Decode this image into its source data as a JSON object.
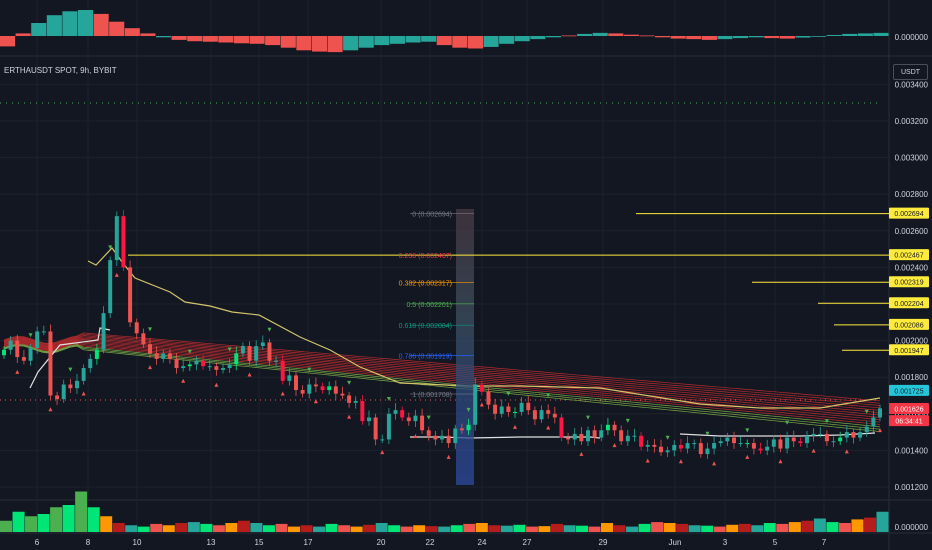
{
  "header": {
    "symbol": "ERTHAUSDT SPOT, 9h, BYBIT",
    "currency": "USDT"
  },
  "oscillator": {
    "zero_label": "0.000000"
  },
  "volume_pane": {
    "zero_label": "0.000000"
  },
  "price_axis": {
    "ticks": [
      "0.003400",
      "0.003200",
      "0.003000",
      "0.002800",
      "0.002600",
      "0.002400",
      "0.002200",
      "0.002000",
      "0.001800",
      "0.001600",
      "0.001400",
      "0.001200"
    ],
    "tick_values": [
      0.0034,
      0.0032,
      0.003,
      0.0028,
      0.0026,
      0.0024,
      0.0022,
      0.002,
      0.0018,
      0.0016,
      0.0014,
      0.0012
    ]
  },
  "time_axis": {
    "labels": [
      "6",
      "8",
      "10",
      "13",
      "15",
      "17",
      "20",
      "22",
      "24",
      "27",
      "29",
      "Jun",
      "3",
      "5",
      "7"
    ]
  },
  "fib_levels": [
    {
      "label": "0 (0.002694)",
      "value": 0.002694,
      "color": "#787b86"
    },
    {
      "label": "0.236 (0.002467)",
      "value": 0.002467,
      "color": "#f23645"
    },
    {
      "label": "0.382 (0.002317)",
      "value": 0.002317,
      "color": "#ff9800"
    },
    {
      "label": "0.5 (0.002201)",
      "value": 0.002201,
      "color": "#4caf50"
    },
    {
      "label": "0.618 (0.002084)",
      "value": 0.002084,
      "color": "#089981"
    },
    {
      "label": "0.786 (0.001919)",
      "value": 0.001919,
      "color": "#2962ff"
    },
    {
      "label": "1 (0.001708)",
      "value": 0.001708,
      "color": "#787b86"
    }
  ],
  "level_badges": [
    {
      "text": "0.002694",
      "value": 0.002694,
      "bg": "#ffeb3b",
      "fg": "#131722"
    },
    {
      "text": "0.002467",
      "value": 0.002467,
      "bg": "#ffeb3b",
      "fg": "#131722"
    },
    {
      "text": "0.002319",
      "value": 0.002319,
      "bg": "#ffeb3b",
      "fg": "#131722"
    },
    {
      "text": "0.002204",
      "value": 0.002204,
      "bg": "#ffeb3b",
      "fg": "#131722"
    },
    {
      "text": "0.002086",
      "value": 0.002086,
      "bg": "#ffeb3b",
      "fg": "#131722"
    },
    {
      "text": "0.001947",
      "value": 0.001947,
      "bg": "#ffeb3b",
      "fg": "#131722"
    },
    {
      "text": "0.001725",
      "value": 0.001725,
      "bg": "#26c6da",
      "fg": "#131722"
    },
    {
      "text": "0.001626",
      "value": 0.001626,
      "bg": "#f23645",
      "fg": "#ffffff"
    },
    {
      "text": "06:34:41",
      "value": 0.00156,
      "bg": "#f23645",
      "fg": "#ffffff"
    }
  ],
  "colors": {
    "up": "#26a69a",
    "down": "#ef5350",
    "bright_up": "#00e676",
    "bright_down": "#ff1744",
    "yellow": "#ffeb3b",
    "ribbon": "#d32f2f",
    "grid": "#1e222d"
  },
  "chart_data": [
    {
      "type": "candlestick",
      "title": "ERTHAUSDT SPOT, 9h, BYBIT",
      "ylim": [
        0.0011,
        0.00345
      ],
      "y_axis_labels": [
        "0.003400",
        "0.003200",
        "0.003000",
        "0.002800",
        "0.002600",
        "0.002400",
        "0.002200",
        "0.002000",
        "0.001800",
        "0.001600",
        "0.001400",
        "0.001200"
      ],
      "x_axis_labels": [
        "6",
        "8",
        "10",
        "13",
        "15",
        "17",
        "20",
        "22",
        "24",
        "27",
        "29",
        "Jun",
        "3",
        "5",
        "7"
      ],
      "series": [
        {
          "name": "ERTHAUSDT",
          "close": [
            0.00195,
            0.002,
            0.00191,
            0.00189,
            0.00196,
            0.00205,
            0.00205,
            0.0017,
            0.00168,
            0.00176,
            0.00174,
            0.00178,
            0.00185,
            0.0019,
            0.00195,
            0.00215,
            0.00244,
            0.00268,
            0.0024,
            0.0021,
            0.00204,
            0.00198,
            0.00193,
            0.0019,
            0.00193,
            0.0019,
            0.00185,
            0.00186,
            0.00187,
            0.00189,
            0.00186,
            0.00186,
            0.00184,
            0.00185,
            0.00187,
            0.00193,
            0.00197,
            0.00189,
            0.00197,
            0.00199,
            0.00189,
            0.00189,
            0.00178,
            0.00181,
            0.00173,
            0.00171,
            0.00176,
            0.00175,
            0.00173,
            0.00175,
            0.00171,
            0.0017,
            0.00166,
            0.00167,
            0.00156,
            0.00158,
            0.00146,
            0.00146,
            0.0016,
            0.00162,
            0.00158,
            0.00156,
            0.00159,
            0.00151,
            0.00148,
            0.00146,
            0.00148,
            0.00144,
            0.00152,
            0.00151,
            0.00154,
            0.00176,
            0.00172,
            0.00165,
            0.0016,
            0.00164,
            0.00161,
            0.00161,
            0.00166,
            0.00162,
            0.00157,
            0.00162,
            0.0016,
            0.00158,
            0.00147,
            0.00146,
            0.00149,
            0.00145,
            0.00151,
            0.00147,
            0.00151,
            0.00154,
            0.00151,
            0.00145,
            0.00148,
            0.00148,
            0.00142,
            0.00143,
            0.00142,
            0.00139,
            0.0014,
            0.00143,
            0.00141,
            0.00144,
            0.00144,
            0.00138,
            0.00141,
            0.00144,
            0.00145,
            0.00147,
            0.00144,
            0.00144,
            0.00144,
            0.00141,
            0.0014,
            0.00142,
            0.00146,
            0.00141,
            0.00147,
            0.00145,
            0.00144,
            0.00148,
            0.00149,
            0.00149,
            0.00145,
            0.00145,
            0.00147,
            0.0015,
            0.00147,
            0.0015,
            0.00153,
            0.00158,
            0.00163
          ]
        }
      ]
    },
    {
      "type": "bar",
      "title": "",
      "y_axis_labels": [
        "0.000000"
      ],
      "series": [
        {
          "name": "oscillator",
          "values": [
            -0.4,
            0.1,
            0.5,
            0.8,
            0.95,
            1.0,
            0.85,
            0.55,
            0.3,
            0.1,
            -0.05,
            -0.15,
            -0.2,
            -0.22,
            -0.25,
            -0.28,
            -0.3,
            -0.35,
            -0.45,
            -0.55,
            -0.6,
            -0.62,
            -0.55,
            -0.45,
            -0.35,
            -0.3,
            -0.25,
            -0.22,
            -0.35,
            -0.45,
            -0.48,
            -0.42,
            -0.3,
            -0.2,
            -0.12,
            -0.05,
            0.02,
            0.08,
            0.12,
            0.1,
            0.05,
            0.02,
            -0.05,
            -0.1,
            -0.12,
            -0.15,
            -0.12,
            -0.08,
            -0.05,
            -0.08,
            -0.1,
            -0.06,
            -0.02,
            0.04,
            0.08,
            0.1,
            0.12
          ]
        }
      ]
    },
    {
      "type": "bar",
      "title": "",
      "y_axis_labels": [
        "0.000000"
      ],
      "series": [
        {
          "name": "volume",
          "values": [
            0.25,
            0.45,
            0.35,
            0.4,
            0.55,
            0.6,
            0.9,
            0.55,
            0.35,
            0.2,
            0.15,
            0.12,
            0.18,
            0.15,
            0.2,
            0.22,
            0.18,
            0.15,
            0.2,
            0.25,
            0.2,
            0.15,
            0.18,
            0.12,
            0.15,
            0.12,
            0.18,
            0.15,
            0.12,
            0.16,
            0.2,
            0.15,
            0.12,
            0.15,
            0.13,
            0.12,
            0.15,
            0.18,
            0.2,
            0.15,
            0.14,
            0.16,
            0.12,
            0.13,
            0.18,
            0.15,
            0.14,
            0.12,
            0.2,
            0.15,
            0.12,
            0.18,
            0.22,
            0.2,
            0.18,
            0.15,
            0.14,
            0.12,
            0.16,
            0.18,
            0.15,
            0.2,
            0.18,
            0.22,
            0.25,
            0.3,
            0.22,
            0.2,
            0.28,
            0.32,
            0.45
          ]
        }
      ]
    }
  ]
}
